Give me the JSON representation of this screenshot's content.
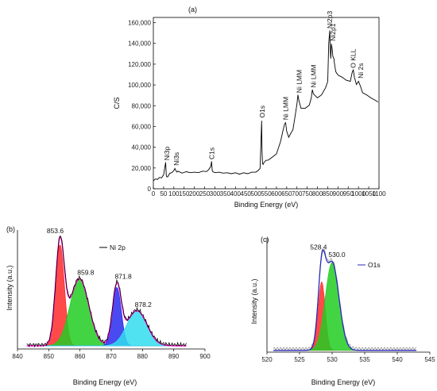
{
  "panels": {
    "a": {
      "label": "(a)",
      "ylabel": "C/S",
      "xlabel": "Binding Energy (eV)",
      "xlim": [
        0,
        1100
      ],
      "ylim": [
        0,
        165000
      ],
      "xticks": [
        "0",
        "50",
        "100",
        "150",
        "200",
        "250",
        "300",
        "350",
        "400",
        "450",
        "500",
        "550",
        "600",
        "650",
        "700",
        "750",
        "800",
        "850",
        "900",
        "950",
        "1000",
        "1050",
        "1100"
      ],
      "xtick_values": [
        0,
        50,
        100,
        150,
        200,
        250,
        300,
        350,
        400,
        450,
        500,
        550,
        600,
        650,
        700,
        750,
        800,
        850,
        900,
        950,
        1000,
        1050,
        1100
      ],
      "yticks": [
        "0",
        "20,000",
        "40,000",
        "60,000",
        "80,000",
        "100,000",
        "120,000",
        "140,000",
        "160,000"
      ],
      "ytick_values": [
        0,
        20000,
        40000,
        60000,
        80000,
        100000,
        120000,
        140000,
        160000
      ],
      "line_color": "#000000"
    },
    "b": {
      "label": "(b)",
      "ylabel": "Intensity (a.u.)",
      "xlabel": "Binding Energy (eV)",
      "xlim": [
        840,
        900
      ],
      "ylim": [
        0,
        1.12
      ],
      "xticks": [
        "840",
        "850",
        "860",
        "870",
        "880",
        "890",
        "900"
      ],
      "xtick_values": [
        840,
        850,
        860,
        870,
        880,
        890,
        900
      ],
      "legend": "Ni 2p"
    },
    "c": {
      "label": "(c)",
      "ylabel": "Intensity (a.u.)",
      "xlabel": "Binding Energy (eV)",
      "xlim": [
        520,
        545
      ],
      "ylim": [
        0,
        1.3
      ],
      "xticks": [
        "520",
        "525",
        "530",
        "535",
        "540",
        "545"
      ],
      "xtick_values": [
        520,
        525,
        530,
        535,
        540,
        545
      ],
      "legend": "O1s"
    }
  },
  "chart_data": [
    {
      "type": "line",
      "panel": "a",
      "xlabel": "Binding Energy (eV)",
      "ylabel": "C/S",
      "xlim": [
        0,
        1100
      ],
      "ylim": [
        0,
        165000
      ],
      "series": [
        {
          "x": [
            0,
            10,
            20,
            30,
            40,
            50,
            55,
            60,
            63,
            66,
            70,
            80,
            90,
            100,
            105,
            110,
            115,
            120,
            140,
            160,
            180,
            200,
            220,
            240,
            260,
            270,
            280,
            284,
            287,
            290,
            300,
            320,
            340,
            360,
            380,
            400,
            420,
            440,
            460,
            480,
            500,
            510,
            520,
            525,
            528,
            530,
            532,
            535,
            540,
            550,
            560,
            580,
            600,
            620,
            630,
            640,
            645,
            650,
            660,
            670,
            680,
            690,
            700,
            705,
            710,
            720,
            740,
            760,
            770,
            775,
            780,
            790,
            800,
            820,
            840,
            850,
            855,
            860,
            862,
            865,
            868,
            872,
            875,
            880,
            885,
            890,
            900,
            920,
            940,
            960,
            970,
            975,
            980,
            990,
            1000,
            1010,
            1020,
            1040,
            1060,
            1080,
            1095
          ],
          "y": [
            8000,
            9000,
            9500,
            10500,
            11000,
            13000,
            20000,
            25000,
            13000,
            11000,
            12000,
            14500,
            16000,
            17000,
            20000,
            17000,
            16500,
            16500,
            15500,
            16000,
            16000,
            15500,
            16000,
            16500,
            17000,
            18000,
            22000,
            26000,
            18000,
            16000,
            16000,
            15500,
            15500,
            15000,
            15000,
            15000,
            14500,
            15000,
            15000,
            15500,
            16500,
            17000,
            20000,
            45000,
            66000,
            36000,
            25000,
            23000,
            26000,
            27000,
            28000,
            30000,
            34000,
            45000,
            55000,
            62000,
            64000,
            55000,
            50000,
            53000,
            57000,
            68000,
            82000,
            90000,
            85000,
            77000,
            78000,
            80000,
            88000,
            95000,
            92000,
            89000,
            88000,
            90000,
            98000,
            103000,
            140000,
            152000,
            135000,
            125000,
            140000,
            134000,
            128000,
            125000,
            118000,
            112000,
            110000,
            107000,
            105000,
            103000,
            113000,
            114000,
            108000,
            100000,
            104000,
            98000,
            93000,
            90000,
            88000,
            85000,
            84000
          ]
        }
      ],
      "annotations": [
        {
          "text": "Ni3p",
          "x": 66
        },
        {
          "text": "Ni3s",
          "x": 112
        },
        {
          "text": "C1s",
          "x": 284
        },
        {
          "text": "O1s",
          "x": 530
        },
        {
          "text": "Ni LMM",
          "x": 645
        },
        {
          "text": "Ni LMM",
          "x": 710
        },
        {
          "text": "Ni LMM",
          "x": 780
        },
        {
          "text": "Ni2p3",
          "x": 860
        },
        {
          "text": "Ni2p1",
          "x": 875
        },
        {
          "text": "O KLL",
          "x": 975
        },
        {
          "text": "Ni 2s",
          "x": 1010
        }
      ]
    },
    {
      "type": "area",
      "panel": "b",
      "xlabel": "Binding Energy (eV)",
      "ylabel": "Intensity (a.u.)",
      "xlim": [
        840,
        900
      ],
      "baseline": 0.03,
      "peaks": [
        {
          "center": 853.6,
          "height": 0.95,
          "sigma": 1.4,
          "color": "#ff2a2a"
        },
        {
          "center": 859.8,
          "height": 0.63,
          "sigma": 3.0,
          "color": "#22cc22"
        },
        {
          "center": 871.8,
          "height": 0.55,
          "sigma": 1.4,
          "color": "#2a2aee"
        },
        {
          "center": 878.2,
          "height": 0.33,
          "sigma": 3.2,
          "color": "#33ddee"
        }
      ],
      "envelope_color": "#ff00cc",
      "data_color": "#000000",
      "annotations": [
        {
          "text": "853.6",
          "x": 853.6
        },
        {
          "text": "859.8",
          "x": 859.8
        },
        {
          "text": "871.8",
          "x": 871.8
        },
        {
          "text": "878.2",
          "x": 878.2
        }
      ],
      "legend": "Ni 2p"
    },
    {
      "type": "area",
      "panel": "c",
      "xlabel": "Binding Energy (eV)",
      "ylabel": "Intensity (a.u.)",
      "xlim": [
        520,
        545
      ],
      "baseline": 0.02,
      "peaks": [
        {
          "center": 528.4,
          "height": 0.78,
          "sigma": 0.55,
          "color": "#ff2a2a"
        },
        {
          "center": 530.0,
          "height": 1.0,
          "sigma": 1.05,
          "color": "#22cc22"
        }
      ],
      "envelope_color": "#2a2ab8",
      "data_color": "#888888",
      "annotations": [
        {
          "text": "528.4",
          "x": 528.4
        },
        {
          "text": "530.0",
          "x": 530.0
        }
      ],
      "legend": "O1s"
    }
  ]
}
